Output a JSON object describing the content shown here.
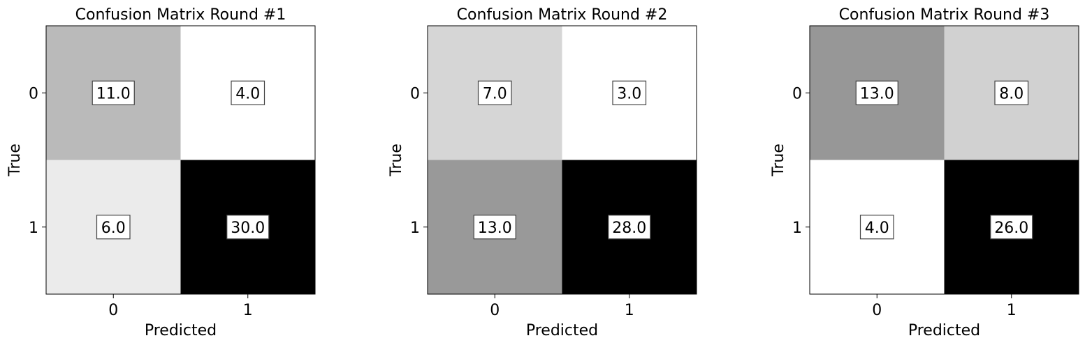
{
  "chart_data": [
    {
      "type": "heatmap",
      "title": "Confusion Matrix Round #1",
      "xlabel": "Predicted",
      "ylabel": "True",
      "x_categories": [
        "0",
        "1"
      ],
      "y_categories": [
        "0",
        "1"
      ],
      "values": [
        [
          11.0,
          4.0
        ],
        [
          6.0,
          30.0
        ]
      ],
      "colormap": "greys",
      "cell_labels": [
        [
          "11.0",
          "4.0"
        ],
        [
          "6.0",
          "30.0"
        ]
      ]
    },
    {
      "type": "heatmap",
      "title": "Confusion Matrix Round #2",
      "xlabel": "Predicted",
      "ylabel": "True",
      "x_categories": [
        "0",
        "1"
      ],
      "y_categories": [
        "0",
        "1"
      ],
      "values": [
        [
          7.0,
          3.0
        ],
        [
          13.0,
          28.0
        ]
      ],
      "colormap": "greys",
      "cell_labels": [
        [
          "7.0",
          "3.0"
        ],
        [
          "13.0",
          "28.0"
        ]
      ]
    },
    {
      "type": "heatmap",
      "title": "Confusion Matrix Round #3",
      "xlabel": "Predicted",
      "ylabel": "True",
      "x_categories": [
        "0",
        "1"
      ],
      "y_categories": [
        "0",
        "1"
      ],
      "values": [
        [
          13.0,
          8.0
        ],
        [
          4.0,
          26.0
        ]
      ],
      "colormap": "greys",
      "cell_labels": [
        [
          "13.0",
          "8.0"
        ],
        [
          "4.0",
          "26.0"
        ]
      ]
    }
  ]
}
